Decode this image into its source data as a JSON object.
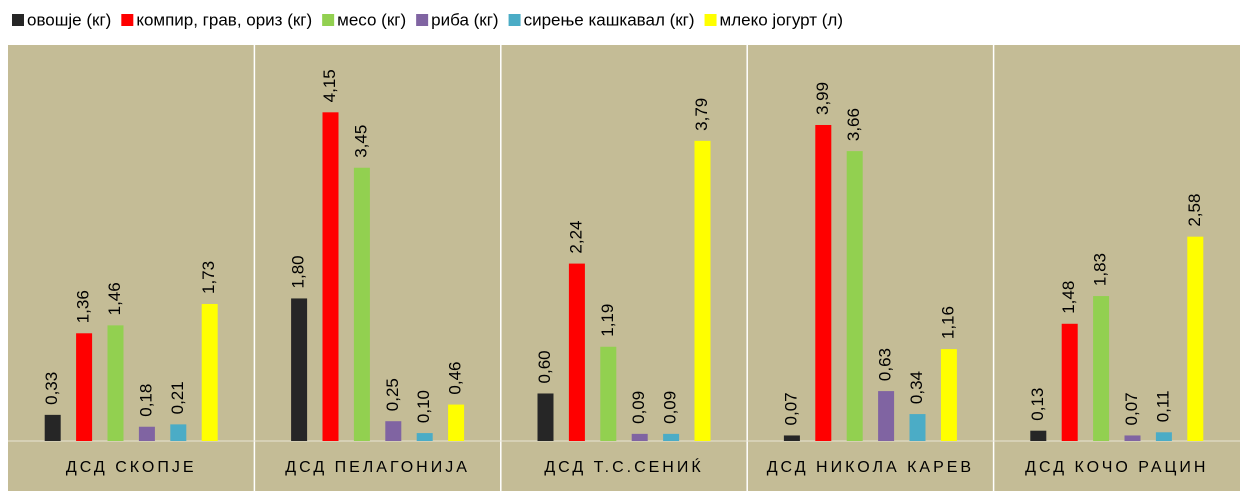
{
  "chart_data": {
    "type": "bar",
    "categories": [
      "ДСД СКОПЈЕ",
      "ДСД ПЕЛАГОНИЈА",
      "ДСД Т.С.СЕНИЌ",
      "ДСД НИКОЛА КАРЕВ",
      "ДСД КОЧО РАЦИН"
    ],
    "series": [
      {
        "name": "овошје (кг)",
        "color": "#262626",
        "values": [
          0.33,
          1.8,
          0.6,
          0.07,
          0.13
        ],
        "value_labels": [
          "0,33",
          "1,80",
          "0,60",
          "0,07",
          "0,13"
        ]
      },
      {
        "name": "компир, грав, ориз (кг)",
        "color": "#ff0000",
        "values": [
          1.36,
          4.15,
          2.24,
          3.99,
          1.48
        ],
        "value_labels": [
          "1,36",
          "4,15",
          "2,24",
          "3,99",
          "1,48"
        ]
      },
      {
        "name": "месо (кг)",
        "color": "#92d050",
        "values": [
          1.46,
          3.45,
          1.19,
          3.66,
          1.83
        ],
        "value_labels": [
          "1,46",
          "3,45",
          "1,19",
          "3,66",
          "1,83"
        ]
      },
      {
        "name": "риба (кг)",
        "color": "#8064a2",
        "values": [
          0.18,
          0.25,
          0.09,
          0.63,
          0.07
        ],
        "value_labels": [
          "0,18",
          "0,25",
          "0,09",
          "0,63",
          "0,07"
        ]
      },
      {
        "name": "сирење кашкавал (кг)",
        "color": "#4bacc6",
        "values": [
          0.21,
          0.1,
          0.09,
          0.34,
          0.11
        ],
        "value_labels": [
          "0,21",
          "0,10",
          "0,09",
          "0,34",
          "0,11"
        ]
      },
      {
        "name": "млеко јогурт (л)",
        "color": "#ffff00",
        "values": [
          1.73,
          0.46,
          3.79,
          1.16,
          2.58
        ],
        "value_labels": [
          "1,73",
          "0,46",
          "3,79",
          "1,16",
          "2,58"
        ]
      }
    ],
    "ylim": [
      0,
      5
    ],
    "legend": "top"
  }
}
